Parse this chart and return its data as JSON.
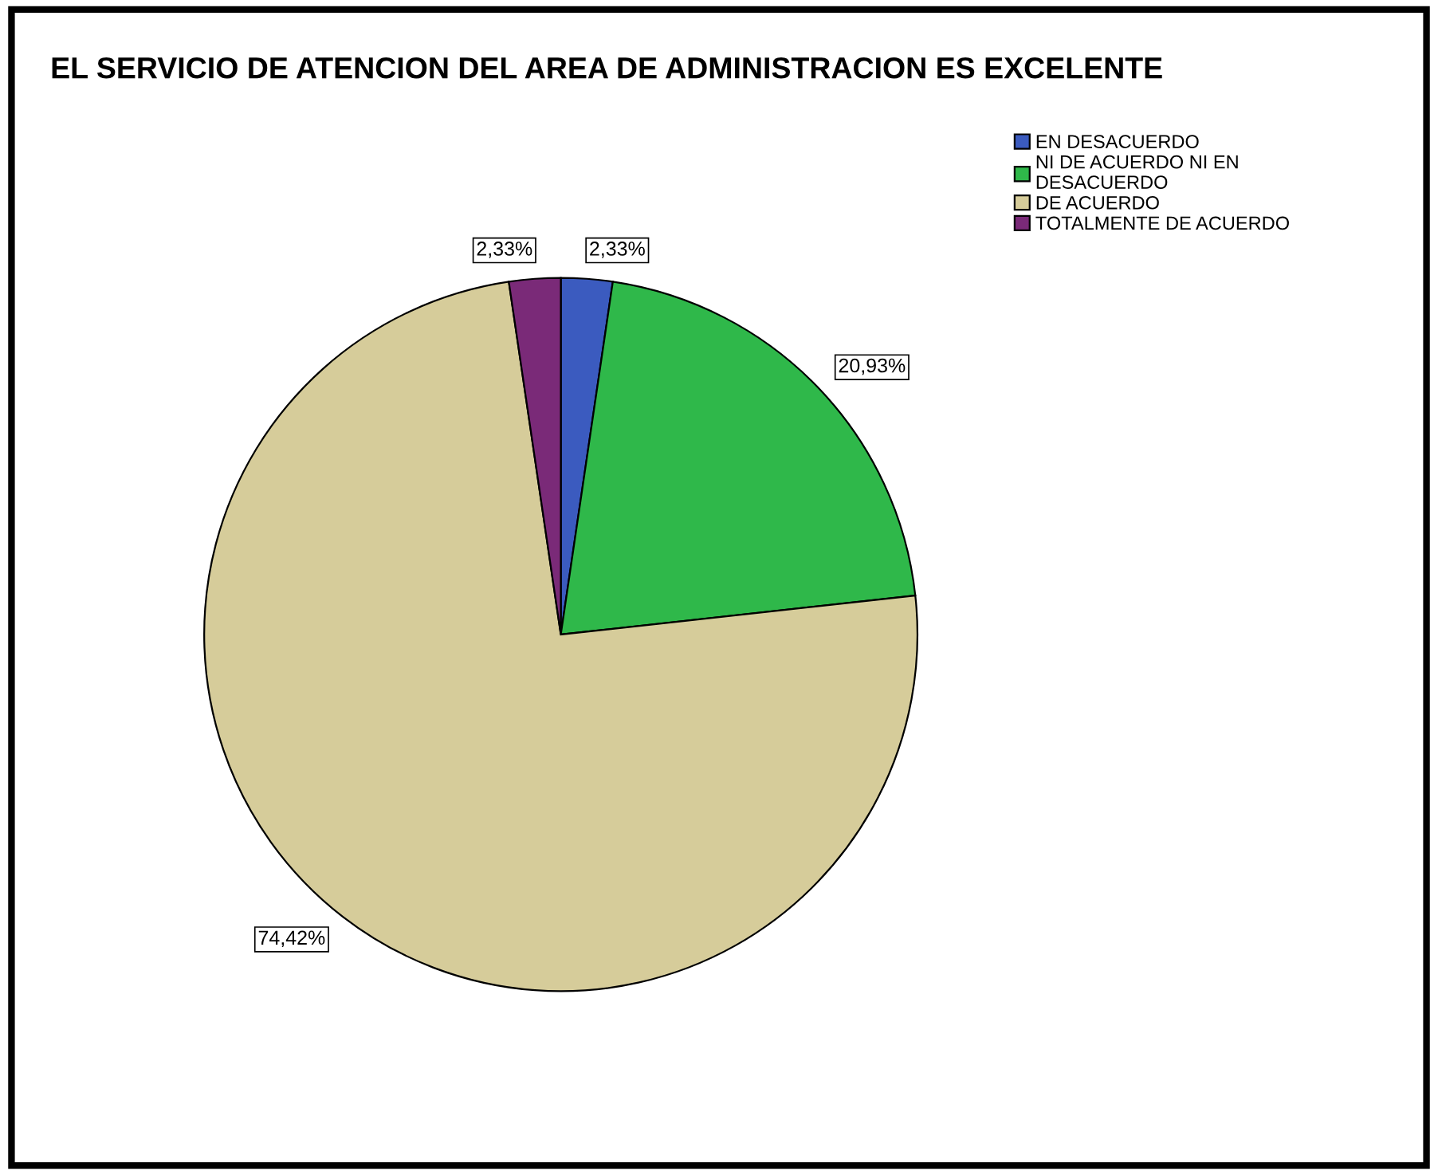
{
  "chart_data": {
    "type": "pie",
    "title": "EL SERVICIO DE ATENCION DEL AREA DE ADMINISTRACION ES EXCELENTE",
    "categories": [
      "EN DESACUERDO",
      "NI DE ACUERDO NI EN\nDESACUERDO",
      "DE ACUERDO",
      "TOTALMENTE DE ACUERDO"
    ],
    "values": [
      2.33,
      20.93,
      74.42,
      2.33
    ],
    "colors": [
      "#3b5bbf",
      "#2fb84a",
      "#d6cc9a",
      "#7a2a78"
    ],
    "value_labels": [
      "2,33%",
      "20,93%",
      "74,42%",
      "2,33%"
    ],
    "legend": "top right"
  }
}
